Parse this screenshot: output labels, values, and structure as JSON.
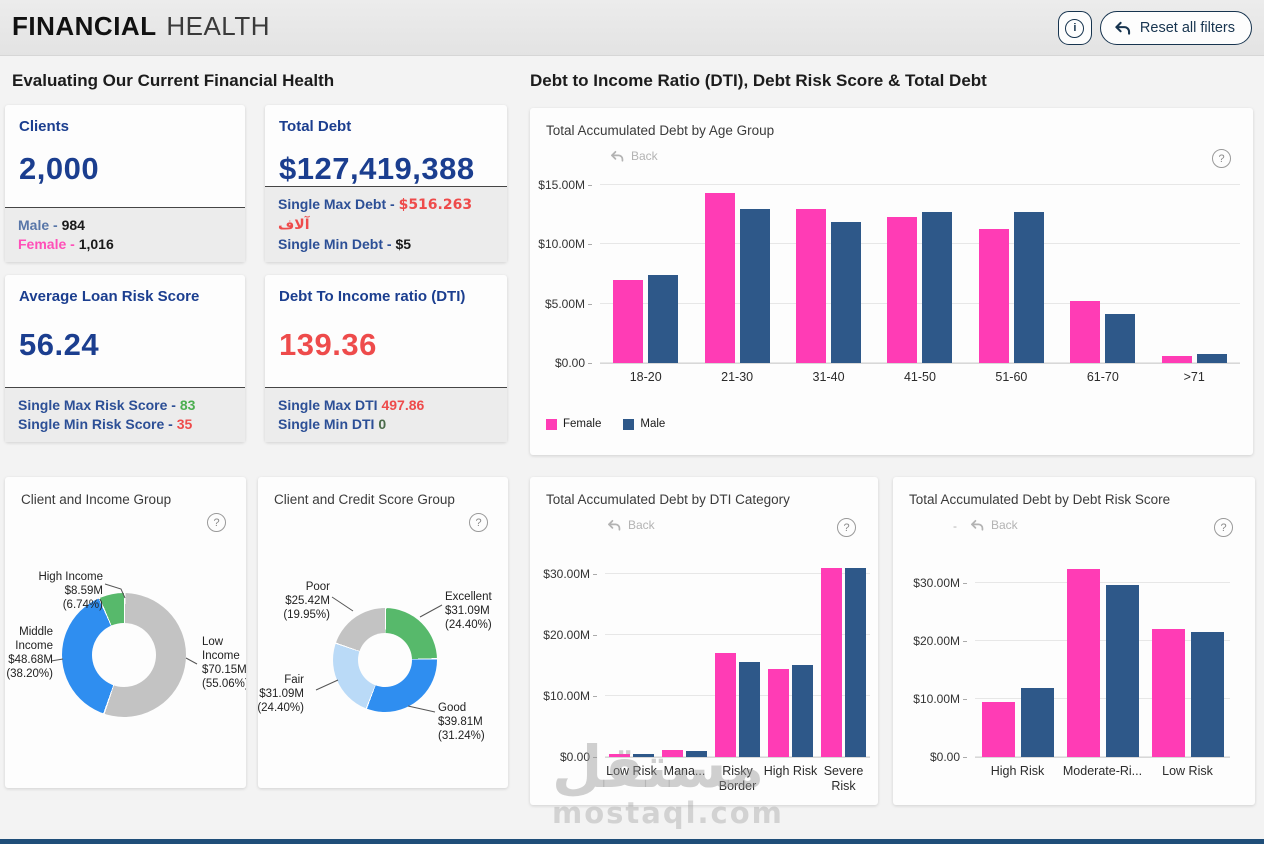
{
  "header": {
    "title_bold": "FINANCIAL",
    "title_light": "HEALTH",
    "reset": {
      "label": "Reset all filters"
    }
  },
  "labels": {
    "back": "Back",
    "back_dash": "-",
    "help": "?"
  },
  "left_panel": {
    "heading": "Evaluating Our Current Financial Health",
    "kpis": [
      {
        "title": "Clients",
        "value": "2,000",
        "sub": [
          {
            "label": "Male -",
            "value": "984"
          },
          {
            "label": "Female -",
            "value": "1,016"
          }
        ]
      },
      {
        "title": "Total Debt",
        "value": "$127,419,388",
        "sub": [
          {
            "label": "Single Max Debt -",
            "value": "$516.263 آلاف"
          },
          {
            "label": "Single Min Debt -",
            "value": "$5"
          }
        ]
      },
      {
        "title": "Average Loan Risk Score",
        "value": "56.24",
        "sub": [
          {
            "label": "Single Max Risk Score -",
            "value": "83"
          },
          {
            "label": "Single Min Risk Score -",
            "value": "35"
          }
        ]
      },
      {
        "title": "Debt To Income ratio (DTI)",
        "value": "139.36",
        "sub": [
          {
            "label": "Single Max DTI",
            "value": "497.86"
          },
          {
            "label": "Single Min DTI",
            "value": "0"
          }
        ]
      }
    ]
  },
  "right_panel": {
    "heading": "Debt to Income Ratio (DTI), Debt Risk Score & Total Debt"
  },
  "watermark": {
    "arabic": "مستقل",
    "domain": "mostaql.com"
  },
  "colors": {
    "female_pink": "#ff3cb5",
    "male_blue": "#2e5889",
    "navy": "#1b3e8f",
    "red": "#ee4b4b",
    "green": "#4caf50",
    "donut_green": "#57b96b",
    "donut_blue": "#2f8ef0",
    "donut_lightblue": "#badaf7",
    "donut_gray": "#c3c3c3",
    "footer_bar": "#1f4e79"
  },
  "chart_data": [
    {
      "type": "bar",
      "title": "Total Accumulated Debt by Age Group",
      "categories": [
        "18-20",
        "21-30",
        "31-40",
        "41-50",
        "51-60",
        "61-70",
        ">71"
      ],
      "series": [
        {
          "name": "Female",
          "color": "#ff3cb5",
          "values": [
            7.0,
            14.3,
            13.0,
            12.3,
            11.3,
            5.2,
            0.6
          ]
        },
        {
          "name": "Male",
          "color": "#2e5889",
          "values": [
            7.4,
            13.0,
            11.9,
            12.7,
            12.7,
            4.1,
            0.8
          ]
        }
      ],
      "yticks": [
        {
          "label": "$0.00",
          "value": 0
        },
        {
          "label": "$5.00M",
          "value": 5
        },
        {
          "label": "$10.00M",
          "value": 10
        },
        {
          "label": "$15.00M",
          "value": 15
        }
      ],
      "ylim": [
        0,
        15
      ],
      "ymax_render": 15,
      "legend_position": "bottom",
      "grid": true
    },
    {
      "type": "bar",
      "title": "Total Accumulated Debt by DTI Category",
      "categories": [
        "Low Risk",
        "Mana...",
        "Risky Border",
        "High Risk",
        "Severe Risk"
      ],
      "series": [
        {
          "name": "Female",
          "color": "#ff3cb5",
          "values": [
            0.5,
            1.2,
            17.0,
            14.4,
            30.9
          ]
        },
        {
          "name": "Male",
          "color": "#2e5889",
          "values": [
            0.5,
            1.0,
            15.5,
            15.0,
            30.9
          ]
        }
      ],
      "yticks": [
        {
          "label": "$0.00",
          "value": 0
        },
        {
          "label": "$10.00M",
          "value": 10
        },
        {
          "label": "$20.00M",
          "value": 20
        },
        {
          "label": "$30.00M",
          "value": 30
        }
      ],
      "ylim": [
        0,
        32.6
      ],
      "ymax_render": 32.6,
      "grid": true
    },
    {
      "type": "bar",
      "title": "Total Accumulated Debt by Debt Risk Score",
      "categories": [
        "High Risk",
        "Moderate-Ri...",
        "Low Risk"
      ],
      "series": [
        {
          "name": "Female",
          "color": "#ff3cb5",
          "values": [
            9.5,
            32.4,
            22.1
          ]
        },
        {
          "name": "Male",
          "color": "#2e5889",
          "values": [
            11.9,
            29.7,
            21.6
          ]
        }
      ],
      "yticks": [
        {
          "label": "$0.00",
          "value": 0
        },
        {
          "label": "$10.00M",
          "value": 10
        },
        {
          "label": "$20.00M",
          "value": 20
        },
        {
          "label": "$30.00M",
          "value": 30
        }
      ],
      "ylim": [
        0,
        34.3
      ],
      "ymax_render": 34.3,
      "grid": true
    },
    {
      "type": "donut",
      "title": "Client and Income Group",
      "slices": [
        {
          "name": "Low Income",
          "amount": "$70.15M",
          "percent": "(55.06%)",
          "pct": 55.06,
          "color": "#c3c3c3"
        },
        {
          "name": "Middle Income",
          "amount": "$48.68M",
          "percent": "(38.20%)",
          "pct": 38.2,
          "color": "#2f8ef0"
        },
        {
          "name": "High Income",
          "amount": "$8.59M",
          "percent": "(6.74%)",
          "pct": 6.74,
          "color": "#57b96b"
        }
      ]
    },
    {
      "type": "donut",
      "title": "Client and Credit Score Group",
      "slices": [
        {
          "name": "Excellent",
          "amount": "$31.09M",
          "percent": "(24.40%)",
          "pct": 24.4,
          "color": "#57b96b"
        },
        {
          "name": "Good",
          "amount": "$39.81M",
          "percent": "(31.24%)",
          "pct": 31.24,
          "color": "#2f8ef0"
        },
        {
          "name": "Fair",
          "amount": "$31.09M",
          "percent": "(24.40%)",
          "pct": 24.4,
          "color": "#badaf7"
        },
        {
          "name": "Poor",
          "amount": "$25.42M",
          "percent": "(19.95%)",
          "pct": 19.95,
          "color": "#c3c3c3"
        }
      ]
    }
  ]
}
